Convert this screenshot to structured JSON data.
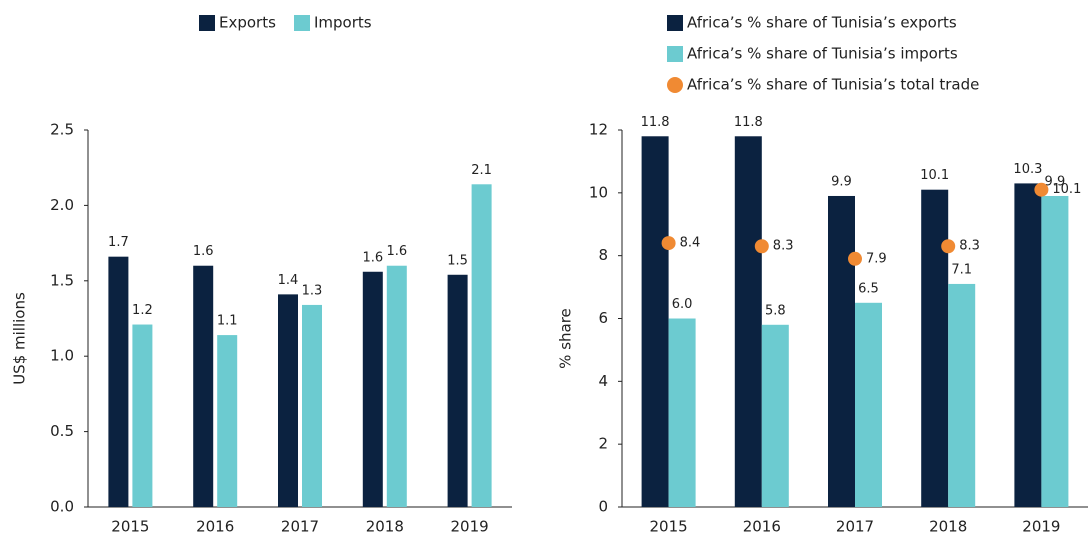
{
  "chart_data": [
    {
      "type": "bar",
      "y_label": "US$ millions",
      "categories": [
        "2015",
        "2016",
        "2017",
        "2018",
        "2019"
      ],
      "series": [
        {
          "name": "Exports",
          "color": "#0b2240",
          "values": [
            1.66,
            1.6,
            1.41,
            1.56,
            1.54
          ],
          "value_labels": [
            "1.7",
            "1.6",
            "1.4",
            "1.6",
            "1.5"
          ]
        },
        {
          "name": "Imports",
          "color": "#6ccbd0",
          "values": [
            1.21,
            1.14,
            1.34,
            1.6,
            2.14
          ],
          "value_labels": [
            "1.2",
            "1.1",
            "1.3",
            "1.6",
            "2.1"
          ]
        }
      ],
      "ylim": [
        0,
        2.5
      ],
      "yticks": [
        {
          "value": 0,
          "label": "0.0"
        },
        0.5,
        {
          "value": 1,
          "label": "1.0"
        },
        1.5,
        {
          "value": 2,
          "label": "2.0"
        },
        2.5
      ],
      "legend": "top"
    },
    {
      "type": "bar",
      "y_label": "% share",
      "categories": [
        "2015",
        "2016",
        "2017",
        "2018",
        "2019"
      ],
      "series": [
        {
          "name": "Africa’s % share of Tunisia’s exports",
          "color": "#0b2240",
          "values": [
            11.8,
            11.8,
            9.9,
            10.1,
            10.3
          ]
        },
        {
          "name": "Africa’s % share of Tunisia’s imports",
          "color": "#6ccbd0",
          "values": [
            6.0,
            5.8,
            6.5,
            7.1,
            9.9
          ],
          "value_labels": [
            "6.0",
            "5.8",
            "6.5",
            "7.1",
            "9.9"
          ]
        },
        {
          "name": "Africa’s % share of Tunisia’s total trade",
          "color": "#f08a33",
          "type": "point",
          "values": [
            8.4,
            8.3,
            7.9,
            8.3,
            10.1
          ]
        }
      ],
      "ylim": [
        0,
        12
      ],
      "yticks": [
        0,
        2,
        4,
        6,
        8,
        10,
        12
      ],
      "legend": "top"
    }
  ]
}
